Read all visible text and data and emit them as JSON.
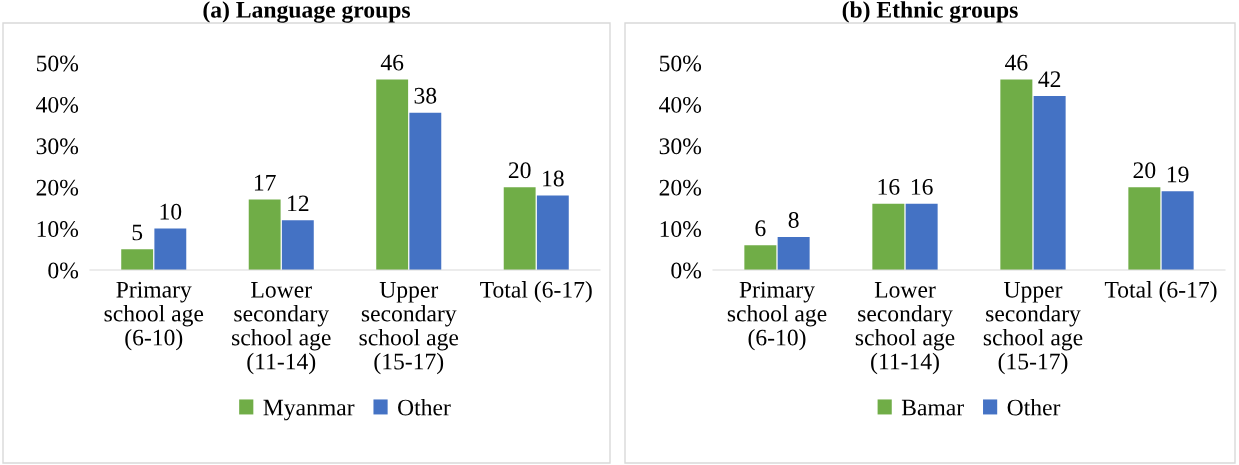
{
  "chart_data": [
    {
      "type": "bar",
      "title": "(a) Language groups",
      "categories": [
        "Primary\nschool age\n(6-10)",
        "Lower\nsecondary\nschool age\n(11-14)",
        "Upper\nsecondary\nschool age\n(15-17)",
        "Total (6-17)"
      ],
      "series": [
        {
          "name": "Myanmar",
          "color": "#70ad47",
          "values": [
            5,
            17,
            46,
            20
          ]
        },
        {
          "name": "Other",
          "color": "#4472c4",
          "values": [
            10,
            12,
            38,
            18
          ]
        }
      ],
      "ylim": [
        0,
        50
      ],
      "yticks": [
        {
          "value": 0,
          "label": "0%"
        },
        {
          "value": 10,
          "label": "10%"
        },
        {
          "value": 20,
          "label": "20%"
        },
        {
          "value": 30,
          "label": "30%"
        },
        {
          "value": 40,
          "label": "40%"
        },
        {
          "value": 50,
          "label": "50%"
        }
      ],
      "data_labels": true,
      "grid": false,
      "legend": "bottom"
    },
    {
      "type": "bar",
      "title": "(b) Ethnic groups",
      "categories": [
        "Primary\nschool age\n(6-10)",
        "Lower\nsecondary\nschool age\n(11-14)",
        "Upper\nsecondary\nschool age\n(15-17)",
        "Total (6-17)"
      ],
      "series": [
        {
          "name": "Bamar",
          "color": "#70ad47",
          "values": [
            6,
            16,
            46,
            20
          ]
        },
        {
          "name": "Other",
          "color": "#4472c4",
          "values": [
            8,
            16,
            42,
            19
          ]
        }
      ],
      "ylim": [
        0,
        50
      ],
      "yticks": [
        {
          "value": 0,
          "label": "0%"
        },
        {
          "value": 10,
          "label": "10%"
        },
        {
          "value": 20,
          "label": "20%"
        },
        {
          "value": 30,
          "label": "30%"
        },
        {
          "value": 40,
          "label": "40%"
        },
        {
          "value": 50,
          "label": "50%"
        }
      ],
      "data_labels": true,
      "grid": false,
      "legend": "bottom"
    }
  ]
}
